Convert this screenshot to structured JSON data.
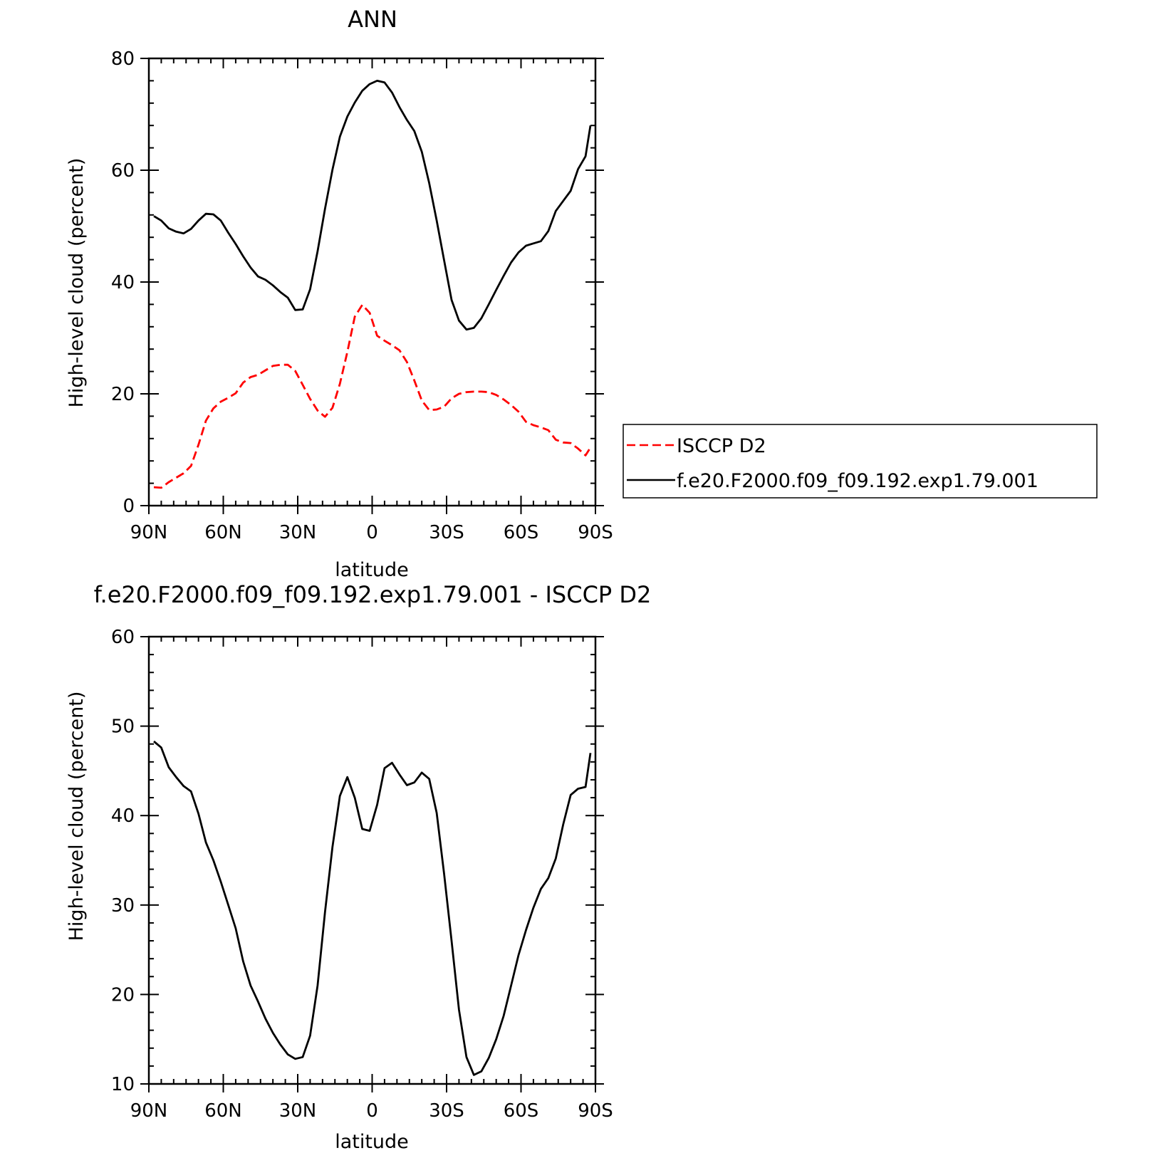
{
  "chart_data": [
    {
      "type": "line",
      "title": "ANN",
      "xlabel": "latitude",
      "ylabel": "High-level cloud (percent)",
      "xlim": [
        -90,
        90
      ],
      "ylim": [
        0,
        80
      ],
      "xticks": [
        {
          "value": -90,
          "label": "90N"
        },
        {
          "value": -60,
          "label": "60N"
        },
        {
          "value": -30,
          "label": "30N"
        },
        {
          "value": 0,
          "label": "0"
        },
        {
          "value": 30,
          "label": "30S"
        },
        {
          "value": 60,
          "label": "60S"
        },
        {
          "value": 90,
          "label": "90S"
        }
      ],
      "yticks": [
        {
          "value": 0,
          "label": "0"
        },
        {
          "value": 20,
          "label": "20"
        },
        {
          "value": 40,
          "label": "40"
        },
        {
          "value": 60,
          "label": "60"
        },
        {
          "value": 80,
          "label": "80"
        }
      ],
      "legend_position": "right",
      "series": [
        {
          "name": "ISCCP D2",
          "color": "#ff0000",
          "dash": true,
          "x": [
            -88,
            -85,
            -82,
            -79,
            -76,
            -73,
            -70,
            -67,
            -64,
            -61,
            -58,
            -55,
            -52,
            -49,
            -46,
            -43,
            -40,
            -37,
            -34,
            -31,
            -28,
            -25,
            -22,
            -19,
            -16,
            -13,
            -10,
            -7,
            -4,
            -1,
            2,
            5,
            8,
            11,
            14,
            17,
            20,
            23,
            26,
            29,
            32,
            35,
            38,
            41,
            44,
            47,
            50,
            53,
            56,
            59,
            62,
            65,
            68,
            71,
            74,
            77,
            80,
            83,
            86,
            88
          ],
          "values": [
            3.3,
            3.2,
            4.2,
            5,
            5.8,
            7.1,
            10.9,
            15.2,
            17.4,
            18.6,
            19.3,
            20.1,
            22,
            23,
            23.4,
            24.2,
            25,
            25.2,
            25.2,
            24.1,
            21.6,
            19.1,
            17,
            15.9,
            17.5,
            21.8,
            27.5,
            33.8,
            35.9,
            34.5,
            30.4,
            29.5,
            28.7,
            27.8,
            25.7,
            22.4,
            18.8,
            17.1,
            17.2,
            17.7,
            19.2,
            20,
            20.3,
            20.4,
            20.4,
            20.3,
            19.8,
            19,
            18,
            16.8,
            15,
            14.4,
            14,
            13.5,
            11.8,
            11.3,
            11.2,
            10.2,
            9,
            10.4
          ]
        },
        {
          "name": "f.e20.F2000.f09_f09.192.exp1.79.001",
          "color": "#000000",
          "dash": false,
          "x": [
            -88,
            -85,
            -82,
            -79,
            -76,
            -73,
            -70,
            -67,
            -64,
            -61,
            -58,
            -55,
            -52,
            -49,
            -46,
            -43,
            -40,
            -37,
            -34,
            -31,
            -28,
            -25,
            -22,
            -19,
            -16,
            -13,
            -10,
            -7,
            -4,
            -1,
            2,
            5,
            8,
            11,
            14,
            17,
            20,
            23,
            26,
            29,
            32,
            35,
            38,
            41,
            44,
            47,
            50,
            53,
            56,
            59,
            62,
            65,
            68,
            71,
            74,
            77,
            80,
            83,
            86,
            88
          ],
          "values": [
            51.8,
            51,
            49.6,
            49,
            48.7,
            49.5,
            51,
            52.2,
            52.1,
            51,
            48.8,
            46.8,
            44.6,
            42.6,
            41,
            40.4,
            39.4,
            38.2,
            37.2,
            35,
            35.1,
            38.7,
            45.5,
            53.1,
            60.1,
            66,
            69.6,
            72.1,
            74.2,
            75.4,
            76,
            75.7,
            73.9,
            71.3,
            69,
            67,
            63.3,
            57.7,
            51,
            43.9,
            36.8,
            33.1,
            31.5,
            31.8,
            33.5,
            36,
            38.6,
            41.1,
            43.5,
            45.3,
            46.5,
            46.9,
            47.3,
            49.1,
            52.7,
            54.5,
            56.3,
            60.2,
            62.5,
            68
          ]
        }
      ]
    },
    {
      "type": "line",
      "title": "f.e20.F2000.f09_f09.192.exp1.79.001 - ISCCP D2",
      "xlabel": "latitude",
      "ylabel": "High-level cloud (percent)",
      "xlim": [
        -90,
        90
      ],
      "ylim": [
        10,
        60
      ],
      "xticks": [
        {
          "value": -90,
          "label": "90N"
        },
        {
          "value": -60,
          "label": "60N"
        },
        {
          "value": -30,
          "label": "30N"
        },
        {
          "value": 0,
          "label": "0"
        },
        {
          "value": 30,
          "label": "30S"
        },
        {
          "value": 60,
          "label": "60S"
        },
        {
          "value": 90,
          "label": "90S"
        }
      ],
      "yticks": [
        {
          "value": 10,
          "label": "10"
        },
        {
          "value": 20,
          "label": "20"
        },
        {
          "value": 30,
          "label": "30"
        },
        {
          "value": 40,
          "label": "40"
        },
        {
          "value": 50,
          "label": "50"
        },
        {
          "value": 60,
          "label": "60"
        }
      ],
      "series": [
        {
          "color": "#000000",
          "dash": false,
          "x": [
            -88,
            -85,
            -82,
            -79,
            -76,
            -73,
            -70,
            -67,
            -64,
            -61,
            -58,
            -55,
            -52,
            -49,
            -46,
            -43,
            -40,
            -37,
            -34,
            -31,
            -28,
            -25,
            -22,
            -19,
            -16,
            -13,
            -10,
            -7,
            -4,
            -1,
            2,
            5,
            8,
            11,
            14,
            17,
            20,
            23,
            26,
            29,
            32,
            35,
            38,
            41,
            44,
            47,
            50,
            53,
            56,
            59,
            62,
            65,
            68,
            71,
            74,
            77,
            80,
            83,
            86,
            88
          ],
          "values": [
            48.3,
            47.6,
            45.4,
            44.3,
            43.3,
            42.7,
            40.2,
            37,
            35,
            32.6,
            30,
            27.4,
            23.7,
            21,
            19.2,
            17.3,
            15.7,
            14.4,
            13.3,
            12.8,
            13,
            15.4,
            21,
            29.2,
            36.5,
            42.2,
            44.3,
            42,
            38.5,
            38.3,
            41.2,
            45.3,
            45.9,
            44.6,
            43.4,
            43.7,
            44.8,
            44.1,
            40.3,
            33.5,
            26,
            18.3,
            13,
            11,
            11.4,
            12.9,
            15,
            17.6,
            21,
            24.4,
            27.2,
            29.7,
            31.8,
            33,
            35.2,
            39,
            42.3,
            43,
            43.2,
            47
          ]
        }
      ]
    }
  ],
  "legend": {
    "items": [
      {
        "label": "ISCCP D2",
        "color": "#ff0000",
        "dash": true
      },
      {
        "label": "f.e20.F2000.f09_f09.192.exp1.79.001",
        "color": "#000000",
        "dash": false
      }
    ]
  }
}
